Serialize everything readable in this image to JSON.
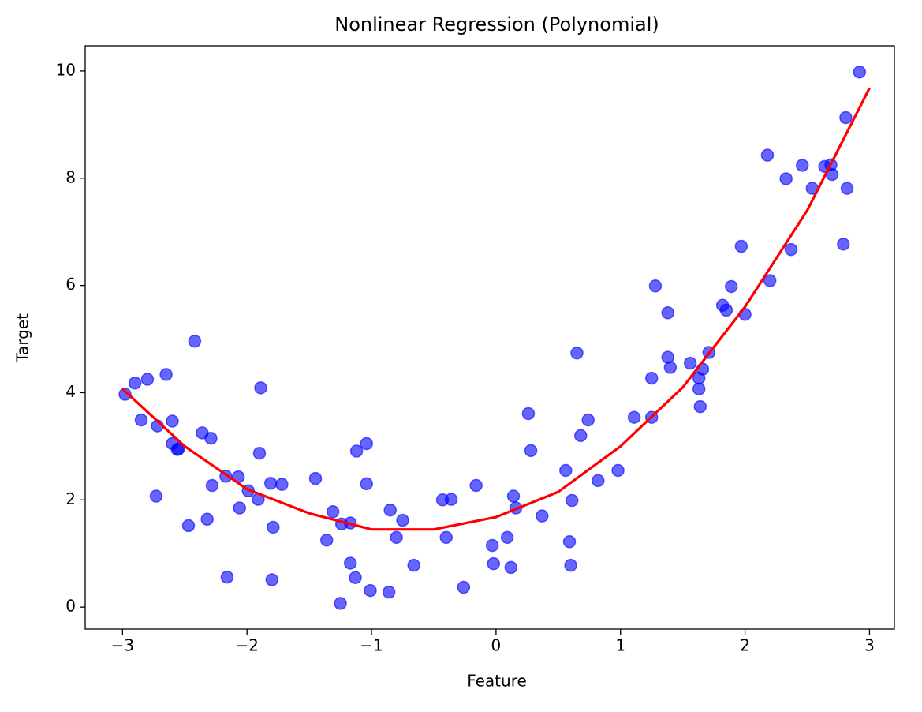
{
  "chart_data": {
    "type": "scatter",
    "title": "Nonlinear Regression (Polynomial)",
    "x_label": "Feature",
    "y_label": "Target",
    "xlim": [
      -3.3,
      3.2
    ],
    "ylim": [
      -0.41,
      10.47
    ],
    "xticks": [
      {
        "value": -3,
        "label": "−3"
      },
      {
        "value": -2,
        "label": "−2"
      },
      {
        "value": -1,
        "label": "−1"
      },
      0,
      1,
      2,
      3
    ],
    "yticks": [
      0,
      2,
      4,
      6,
      8,
      10
    ],
    "points": {
      "color": "#0000ff",
      "x": [
        -2.98,
        -2.9,
        -2.85,
        -2.8,
        -2.73,
        -2.72,
        -2.65,
        -2.6,
        -2.6,
        -2.56,
        -2.55,
        -2.47,
        -2.42,
        -2.36,
        -2.32,
        -2.29,
        -2.28,
        -2.17,
        -2.16,
        -2.07,
        -2.06,
        -1.99,
        -1.91,
        -1.9,
        -1.89,
        -1.81,
        -1.8,
        -1.79,
        -1.72,
        -1.45,
        -1.36,
        -1.31,
        -1.25,
        -1.24,
        -1.17,
        -1.17,
        -1.13,
        -1.12,
        -1.04,
        -1.04,
        -1.01,
        -0.86,
        -0.85,
        -0.8,
        -0.75,
        -0.66,
        -0.43,
        -0.4,
        -0.36,
        -0.26,
        -0.16,
        -0.03,
        -0.02,
        0.09,
        0.12,
        0.14,
        0.16,
        0.26,
        0.28,
        0.37,
        0.56,
        0.59,
        0.6,
        0.61,
        0.65,
        0.68,
        0.74,
        0.82,
        0.98,
        1.11,
        1.25,
        1.25,
        1.28,
        1.38,
        1.38,
        1.4,
        1.56,
        1.63,
        1.63,
        1.64,
        1.66,
        1.71,
        1.82,
        1.85,
        1.89,
        1.97,
        2.0,
        2.18,
        2.2,
        2.33,
        2.37,
        2.46,
        2.54,
        2.64,
        2.69,
        2.7,
        2.79,
        2.81,
        2.82,
        2.92
      ],
      "y": [
        3.97,
        4.18,
        3.49,
        4.25,
        2.07,
        3.38,
        4.34,
        3.47,
        3.05,
        2.94,
        2.95,
        1.52,
        4.96,
        3.25,
        1.64,
        3.15,
        2.27,
        2.44,
        0.56,
        2.43,
        1.85,
        2.17,
        2.01,
        2.87,
        4.09,
        2.31,
        0.51,
        1.49,
        2.29,
        2.4,
        1.25,
        1.78,
        0.07,
        1.55,
        1.57,
        0.82,
        0.55,
        2.91,
        3.05,
        2.3,
        0.31,
        0.28,
        1.81,
        1.3,
        1.62,
        0.78,
        2.0,
        1.3,
        2.01,
        0.37,
        2.27,
        1.15,
        0.81,
        1.3,
        0.74,
        2.07,
        1.85,
        3.61,
        2.92,
        1.7,
        2.55,
        1.22,
        0.78,
        1.99,
        4.74,
        3.2,
        3.49,
        2.36,
        2.55,
        3.54,
        4.27,
        3.54,
        5.99,
        5.49,
        4.66,
        4.47,
        4.55,
        4.27,
        4.07,
        3.74,
        4.44,
        4.75,
        5.63,
        5.54,
        5.98,
        6.73,
        5.46,
        8.43,
        6.09,
        7.99,
        6.67,
        8.24,
        7.81,
        8.22,
        8.25,
        8.07,
        6.77,
        9.13,
        7.81,
        9.98
      ]
    },
    "fit": {
      "color": "#ff0000",
      "x": [
        -3,
        -2.5,
        -2,
        -1.5,
        -1,
        -0.5,
        0,
        0.5,
        1,
        1.5,
        2,
        2.5,
        3
      ],
      "y": [
        4.07,
        3.0,
        2.2,
        1.75,
        1.45,
        1.45,
        1.68,
        2.15,
        3.0,
        4.1,
        5.6,
        7.4,
        9.68
      ]
    }
  }
}
